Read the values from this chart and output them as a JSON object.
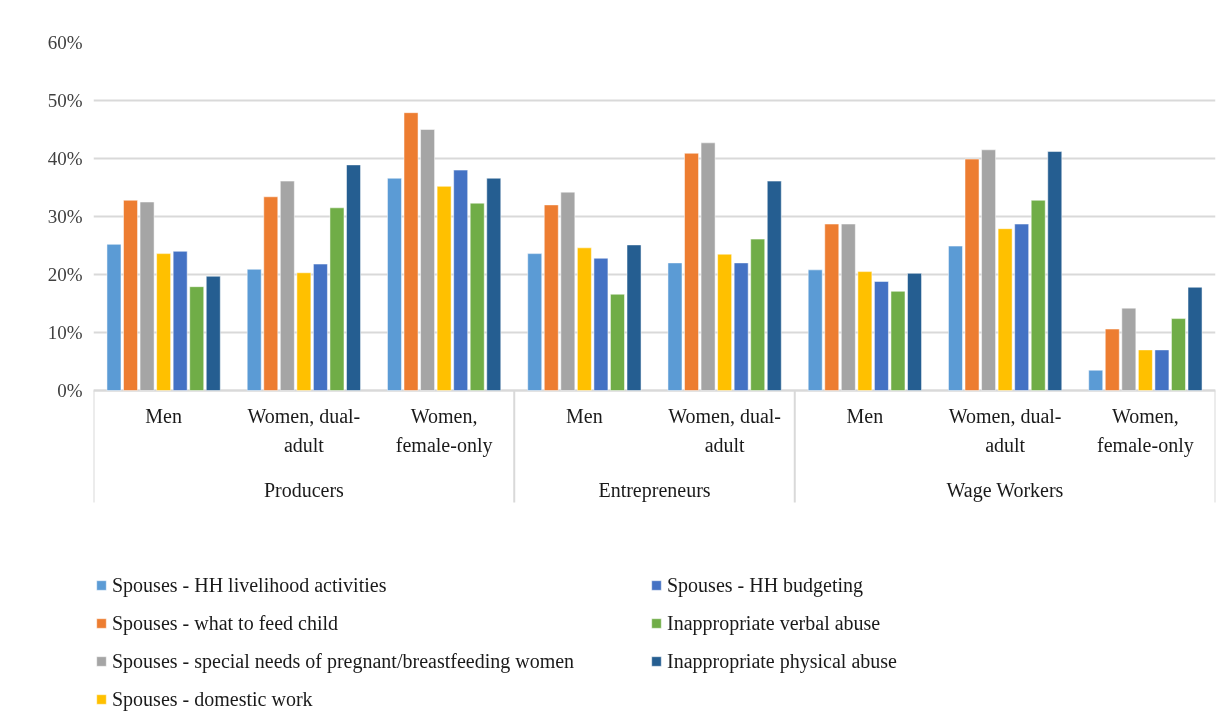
{
  "chart_data": {
    "type": "bar",
    "categories": [
      "Men",
      "Women, dual-adult",
      "Women, female-only",
      "Men",
      "Women, dual-adult",
      "Men",
      "Women, dual-adult",
      "Women, female-only"
    ],
    "annotations": [
      "Producers",
      "Entrepreneurs",
      "Wage Workers"
    ],
    "ylim": [
      0,
      60
    ],
    "yticks": [
      {
        "value": 0,
        "label": "0%"
      },
      {
        "value": 10,
        "label": "10%"
      },
      {
        "value": 20,
        "label": "20%"
      },
      {
        "value": 30,
        "label": "30%"
      },
      {
        "value": 40,
        "label": "40%"
      },
      {
        "value": 50,
        "label": "50%"
      },
      {
        "value": 60,
        "label": "60%"
      }
    ],
    "grid": "y",
    "legend": "bottom",
    "series": [
      {
        "name": "Spouses - HH livelihood activities",
        "color": "#5b9bd5",
        "values": [
          25.2,
          20.9,
          36.6,
          23.6,
          22.0,
          20.8,
          24.9,
          3.5
        ]
      },
      {
        "name": "Spouses - what to feed child",
        "color": "#ed7d31",
        "values": [
          32.8,
          33.4,
          47.9,
          32.0,
          40.9,
          28.7,
          39.9,
          10.6
        ]
      },
      {
        "name": "Spouses - special needs of pregnant/breastfeeding women",
        "color": "#a5a5a5",
        "values": [
          32.5,
          36.1,
          45.0,
          34.2,
          42.7,
          28.7,
          41.5,
          14.2
        ]
      },
      {
        "name": "Spouses - domestic work",
        "color": "#ffc000",
        "values": [
          23.6,
          20.3,
          35.2,
          24.6,
          23.5,
          20.5,
          27.9,
          7.0
        ]
      },
      {
        "name": "Spouses - HH budgeting",
        "color": "#4472c4",
        "values": [
          24.0,
          21.8,
          38.0,
          22.8,
          22.0,
          18.8,
          28.7,
          7.0
        ]
      },
      {
        "name": "Inappropriate verbal abuse",
        "color": "#70ad47",
        "values": [
          17.9,
          31.5,
          32.3,
          16.6,
          26.1,
          17.1,
          32.8,
          12.4
        ]
      },
      {
        "name": "Inappropriate physical abuse",
        "color": "#255e91",
        "values": [
          19.7,
          38.9,
          36.6,
          25.1,
          36.1,
          20.2,
          41.2,
          17.8
        ]
      }
    ]
  }
}
